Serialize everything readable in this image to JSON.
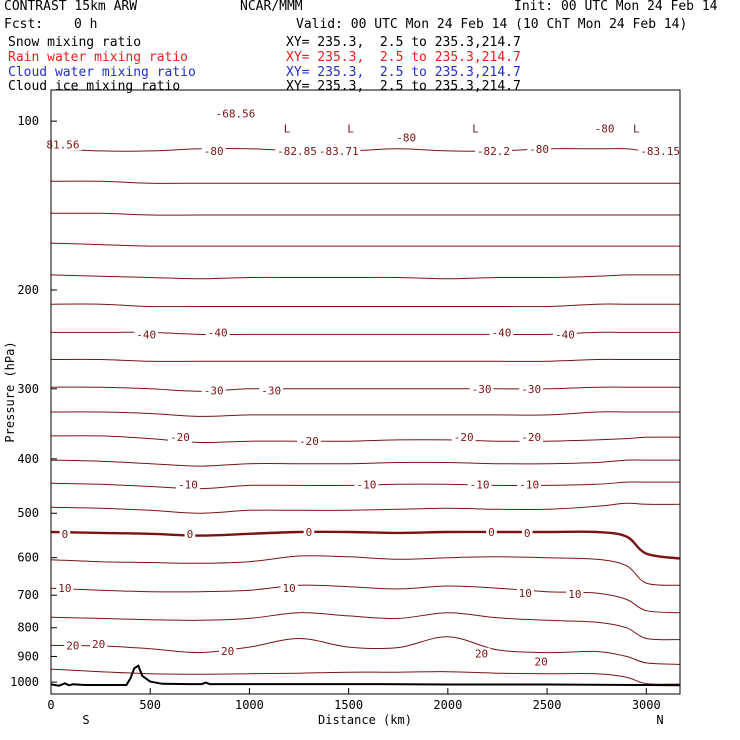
{
  "header": {
    "model": "CONTRAST 15km ARW",
    "org": "NCAR/MMM",
    "init": "Init: 00 UTC Mon 24 Feb 14",
    "fcst_label": "Fcst:",
    "fcst_value": "0 h",
    "valid": "Valid: 00 UTC Mon 24 Feb 14 (10 ChT Mon 24 Feb 14)"
  },
  "legend": [
    {
      "label": "Snow mixing ratio",
      "xy": "XY= 235.3,  2.5 to 235.3,214.7",
      "color": "#000000"
    },
    {
      "label": "Rain water mixing ratio",
      "xy": "XY= 235.3,  2.5 to 235.3,214.7",
      "color": "#e8201c"
    },
    {
      "label": "Cloud water mixing ratio",
      "xy": "XY= 235.3,  2.5 to 235.3,214.7",
      "color": "#2230c8"
    },
    {
      "label": "Cloud ice mixing ratio",
      "xy": "XY= 235.3,  2.5 to 235.3,214.7",
      "color": "#000000"
    }
  ],
  "colors": {
    "contour": "#7a1414",
    "terrain": "#000000",
    "frame": "#000000"
  },
  "chart_data": {
    "type": "line",
    "title": "",
    "xlabel": "Distance (km)",
    "ylabel": "Pressure (hPa)",
    "xlim": [
      0,
      3170
    ],
    "ylim": [
      1050,
      88
    ],
    "y_scale": "log",
    "x_ticks": [
      "0",
      "500",
      "1000",
      "1500",
      "2000",
      "2500",
      "3000"
    ],
    "x_tick_values": [
      0,
      500,
      1000,
      1500,
      2000,
      2500,
      3000
    ],
    "y_ticks": [
      "100",
      "200",
      "300",
      "400",
      "500",
      "600",
      "700",
      "800",
      "900",
      "1000"
    ],
    "y_tick_values": [
      100,
      200,
      300,
      400,
      500,
      600,
      700,
      800,
      900,
      1000
    ],
    "endpoint_labels": {
      "left": "S",
      "right": "N"
    },
    "contour_x": [
      0,
      250,
      500,
      750,
      1000,
      1250,
      1500,
      1750,
      2000,
      2250,
      2500,
      2750,
      2900,
      3000,
      3170
    ],
    "contours": [
      {
        "level": -80,
        "p": [
          112,
          113,
          113,
          112,
          112,
          113,
          113,
          112,
          113,
          113,
          112,
          112,
          112,
          113,
          113
        ]
      },
      {
        "level": -70,
        "p": [
          128,
          128,
          129,
          129,
          129,
          129,
          129,
          129,
          129,
          129,
          129,
          129,
          129,
          129,
          129
        ]
      },
      {
        "level": -70,
        "p": [
          146,
          146,
          147,
          147,
          147,
          147,
          147,
          147,
          147,
          147,
          147,
          147,
          147,
          147,
          147
        ]
      },
      {
        "level": -60,
        "p": [
          165,
          166,
          167,
          167,
          167,
          167,
          167,
          167,
          167,
          167,
          167,
          167,
          167,
          167,
          167
        ]
      },
      {
        "level": -50,
        "p": [
          188,
          189,
          190,
          191,
          190,
          190,
          190,
          190,
          191,
          190,
          190,
          189,
          188,
          188,
          188
        ]
      },
      {
        "level": -45,
        "p": [
          212,
          212,
          214,
          214,
          214,
          214,
          214,
          214,
          214,
          214,
          214,
          212,
          212,
          212,
          212
        ]
      },
      {
        "level": -40,
        "p": [
          238,
          238,
          238,
          240,
          240,
          240,
          240,
          240,
          240,
          240,
          240,
          238,
          238,
          238,
          238
        ]
      },
      {
        "level": -35,
        "p": [
          266,
          266,
          268,
          268,
          268,
          268,
          268,
          268,
          268,
          268,
          268,
          266,
          266,
          266,
          266
        ]
      },
      {
        "level": -30,
        "p": [
          298,
          298,
          300,
          303,
          300,
          300,
          300,
          300,
          300,
          300,
          300,
          298,
          298,
          298,
          298
        ]
      },
      {
        "level": -25,
        "p": [
          330,
          330,
          332,
          336,
          334,
          334,
          334,
          334,
          334,
          334,
          334,
          330,
          330,
          330,
          330
        ]
      },
      {
        "level": -20,
        "p": [
          364,
          364,
          368,
          374,
          372,
          372,
          372,
          370,
          370,
          372,
          372,
          370,
          368,
          366,
          366
        ]
      },
      {
        "level": -15,
        "p": [
          402,
          404,
          408,
          412,
          408,
          408,
          408,
          406,
          406,
          408,
          408,
          406,
          402,
          402,
          402
        ]
      },
      {
        "level": -10,
        "p": [
          442,
          444,
          448,
          452,
          446,
          446,
          446,
          444,
          444,
          446,
          446,
          444,
          440,
          440,
          440
        ]
      },
      {
        "level": -5,
        "p": [
          488,
          490,
          494,
          500,
          494,
          494,
          494,
          492,
          490,
          492,
          492,
          486,
          480,
          482,
          482
        ]
      },
      {
        "level": 0,
        "p": [
          540,
          542,
          544,
          548,
          544,
          540,
          540,
          542,
          540,
          540,
          540,
          540,
          550,
          590,
          602
        ]
      },
      {
        "level": 5,
        "p": [
          605,
          610,
          612,
          614,
          610,
          596,
          598,
          604,
          600,
          598,
          600,
          604,
          620,
          666,
          672
        ]
      },
      {
        "level": 10,
        "p": [
          680,
          686,
          690,
          690,
          686,
          672,
          676,
          682,
          674,
          680,
          690,
          694,
          712,
          746,
          752
        ]
      },
      {
        "level": 15,
        "p": [
          766,
          770,
          774,
          776,
          770,
          752,
          762,
          770,
          752,
          768,
          776,
          782,
          800,
          836,
          840
        ]
      },
      {
        "level": 20,
        "p": [
          860,
          862,
          872,
          886,
          866,
          836,
          866,
          868,
          830,
          876,
          886,
          882,
          900,
          924,
          930
        ]
      },
      {
        "level": 25,
        "p": [
          948,
          958,
          966,
          968,
          966,
          964,
          960,
          960,
          958,
          964,
          966,
          966,
          980,
          1006,
          1008
        ]
      }
    ],
    "contour_labels": [
      {
        "text": "-68.56",
        "x": 930,
        "p": 97
      },
      {
        "text": "81.56",
        "x": 60,
        "p": 110
      },
      {
        "text": "-80",
        "x": 820,
        "p": 113
      },
      {
        "text": "-82.85",
        "x": 1240,
        "p": 113
      },
      {
        "text": "-83.71",
        "x": 1450,
        "p": 113
      },
      {
        "text": "-80",
        "x": 1790,
        "p": 107
      },
      {
        "text": "-82.2",
        "x": 2230,
        "p": 113
      },
      {
        "text": "-80",
        "x": 2460,
        "p": 112
      },
      {
        "text": "-80",
        "x": 2790,
        "p": 103
      },
      {
        "text": "-83.15",
        "x": 3070,
        "p": 113
      },
      {
        "text": "-40",
        "x": 480,
        "p": 240
      },
      {
        "text": "-40",
        "x": 840,
        "p": 238
      },
      {
        "text": "-40",
        "x": 2270,
        "p": 238
      },
      {
        "text": "-40",
        "x": 2590,
        "p": 240
      },
      {
        "text": "-30",
        "x": 820,
        "p": 302
      },
      {
        "text": "-30",
        "x": 1110,
        "p": 302
      },
      {
        "text": "-30",
        "x": 2170,
        "p": 300
      },
      {
        "text": "-30",
        "x": 2420,
        "p": 300
      },
      {
        "text": "-20",
        "x": 650,
        "p": 366
      },
      {
        "text": "-20",
        "x": 1300,
        "p": 372
      },
      {
        "text": "-20",
        "x": 2080,
        "p": 366
      },
      {
        "text": "-20",
        "x": 2420,
        "p": 366
      },
      {
        "text": "-10",
        "x": 690,
        "p": 444
      },
      {
        "text": "-10",
        "x": 1590,
        "p": 444
      },
      {
        "text": "-10",
        "x": 2160,
        "p": 444
      },
      {
        "text": "-10",
        "x": 2410,
        "p": 444
      },
      {
        "text": "0",
        "x": 70,
        "p": 544
      },
      {
        "text": "0",
        "x": 700,
        "p": 544
      },
      {
        "text": "0",
        "x": 1300,
        "p": 540
      },
      {
        "text": "0",
        "x": 2220,
        "p": 540
      },
      {
        "text": "0",
        "x": 2400,
        "p": 542
      },
      {
        "text": "10",
        "x": 70,
        "p": 680
      },
      {
        "text": "10",
        "x": 1200,
        "p": 680
      },
      {
        "text": "10",
        "x": 2390,
        "p": 694
      },
      {
        "text": "10",
        "x": 2640,
        "p": 696
      },
      {
        "text": "20",
        "x": 110,
        "p": 860
      },
      {
        "text": "20",
        "x": 240,
        "p": 856
      },
      {
        "text": "20",
        "x": 890,
        "p": 880
      },
      {
        "text": "20",
        "x": 2170,
        "p": 890
      },
      {
        "text": "20",
        "x": 2470,
        "p": 918
      }
    ],
    "minimum_markers": [
      {
        "text": "L",
        "x": 1190,
        "p": 103
      },
      {
        "text": "L",
        "x": 1510,
        "p": 103
      },
      {
        "text": "L",
        "x": 2140,
        "p": 103
      },
      {
        "text": "L",
        "x": 2950,
        "p": 103
      }
    ],
    "terrain": {
      "x": [
        0,
        40,
        70,
        90,
        110,
        170,
        380,
        400,
        420,
        440,
        460,
        500,
        560,
        700,
        760,
        780,
        800,
        900,
        1200,
        1600,
        2000,
        2500,
        3000,
        3170
      ],
      "p": [
        1009,
        1015,
        1005,
        1013,
        1009,
        1012,
        1012,
        985,
        945,
        935,
        975,
        998,
        1007,
        1008,
        1008,
        1002,
        1008,
        1008,
        1008,
        1008,
        1010,
        1010,
        1012,
        1013
      ]
    }
  }
}
